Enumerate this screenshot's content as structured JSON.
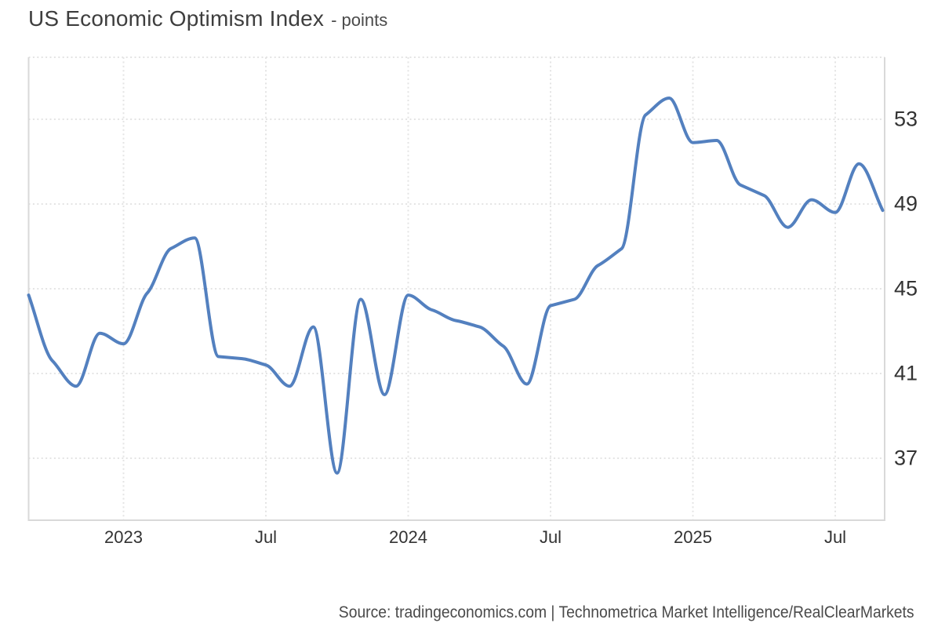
{
  "header": {
    "title": "US Economic Optimism Index",
    "subtitle": "- points"
  },
  "source": {
    "text": "Source: tradingeconomics.com | Technometrica Market Intelligence/RealClearMarkets"
  },
  "chart_data": {
    "type": "line",
    "title": "US Economic Optimism Index",
    "unit": "points",
    "x": [
      "Sep 2022",
      "Oct 2022",
      "Nov 2022",
      "Dec 2022",
      "Jan 2023",
      "Feb 2023",
      "Mar 2023",
      "Apr 2023",
      "May 2023",
      "Jun 2023",
      "Jul 2023",
      "Aug 2023",
      "Sep 2023",
      "Oct 2023",
      "Nov 2023",
      "Dec 2023",
      "Jan 2024",
      "Feb 2024",
      "Mar 2024",
      "Apr 2024",
      "May 2024",
      "Jun 2024",
      "Jul 2024",
      "Aug 2024",
      "Sep 2024",
      "Oct 2024",
      "Nov 2024",
      "Dec 2024",
      "Jan 2025",
      "Feb 2025",
      "Mar 2025",
      "Apr 2025",
      "May 2025",
      "Jun 2025",
      "Jul 2025",
      "Aug 2025",
      "Sep 2025"
    ],
    "values": [
      44.7,
      41.6,
      40.4,
      42.9,
      42.4,
      44.8,
      46.9,
      47.4,
      41.8,
      41.7,
      41.4,
      40.4,
      43.2,
      36.3,
      44.5,
      40.0,
      44.7,
      44.0,
      43.5,
      43.2,
      42.3,
      40.5,
      44.2,
      44.5,
      46.1,
      46.9,
      53.2,
      54.0,
      51.9,
      52.0,
      49.9,
      49.4,
      47.9,
      49.2,
      48.6,
      50.9,
      48.7
    ],
    "x_ticks": [
      {
        "label": "2023",
        "month_index": 4
      },
      {
        "label": "Jul",
        "month_index": 10
      },
      {
        "label": "2024",
        "month_index": 16
      },
      {
        "label": "Jul",
        "month_index": 22
      },
      {
        "label": "2025",
        "month_index": 28
      },
      {
        "label": "Jul",
        "month_index": 34
      }
    ],
    "y_ticks": [
      53,
      49,
      45,
      41,
      37
    ],
    "ylim": [
      34.1,
      55.9
    ],
    "grid": true,
    "legend": "none",
    "line_color": "#5380bf",
    "grid_color": "#e4e4e4",
    "border_color": "#d9d9d9",
    "label_color": "#333333"
  }
}
